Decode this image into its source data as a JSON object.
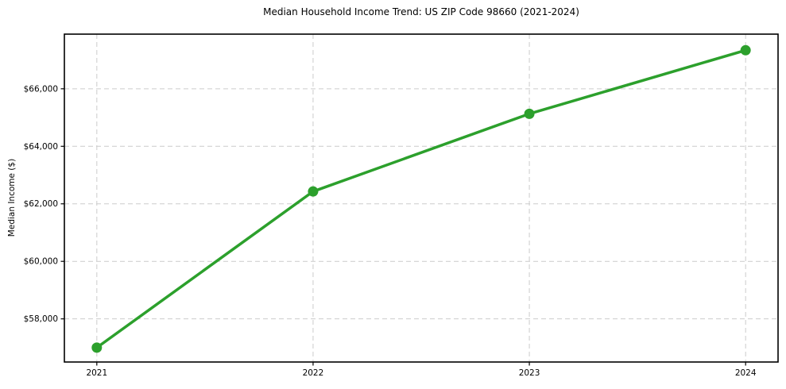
{
  "page": {
    "background": "#ffffff"
  },
  "chart_data": {
    "type": "line",
    "title": "Median Household Income Trend: US ZIP Code 98660 (2021-2024)",
    "xlabel": "",
    "ylabel": "Median Income ($)",
    "categories": [
      2021,
      2022,
      2023,
      2024
    ],
    "series": [
      {
        "name": "median-household-income",
        "values": [
          57000,
          62430,
          65130,
          67340
        ]
      }
    ],
    "xtick_labels": [
      "2021",
      "2022",
      "2023",
      "2024"
    ],
    "yticks": [
      58000,
      60000,
      62000,
      64000,
      66000
    ],
    "ytick_labels": [
      "$58,000",
      "$60,000",
      "$62,000",
      "$64,000",
      "$66,000"
    ],
    "xlim": [
      2020.85,
      2024.15
    ],
    "ylim": [
      56500,
      67900
    ],
    "grid": true,
    "grid_line_style": "dashed",
    "legend_position": "none",
    "colors": {
      "line": "#2ca02c",
      "marker": "#2ca02c",
      "grid": "#cccccc",
      "spine": "#000000",
      "text": "#000000"
    }
  }
}
